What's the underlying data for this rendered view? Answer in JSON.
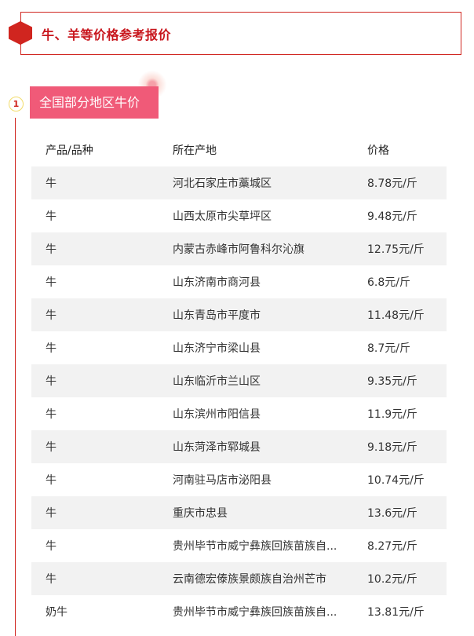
{
  "header": {
    "title": "牛、羊等价格参考报价"
  },
  "section": {
    "number": "1",
    "title": "全国部分地区牛价"
  },
  "table": {
    "columns": [
      "产品/品种",
      "所在产地",
      "价格"
    ],
    "rows": [
      [
        "牛",
        "河北石家庄市藁城区",
        "8.78元/斤"
      ],
      [
        "牛",
        "山西太原市尖草坪区",
        "9.48元/斤"
      ],
      [
        "牛",
        "内蒙古赤峰市阿鲁科尔沁旗",
        "12.75元/斤"
      ],
      [
        "牛",
        "山东济南市商河县",
        "6.8元/斤"
      ],
      [
        "牛",
        "山东青岛市平度市",
        "11.48元/斤"
      ],
      [
        "牛",
        "山东济宁市梁山县",
        "8.7元/斤"
      ],
      [
        "牛",
        "山东临沂市兰山区",
        "9.35元/斤"
      ],
      [
        "牛",
        "山东滨州市阳信县",
        "11.9元/斤"
      ],
      [
        "牛",
        "山东菏泽市郓城县",
        "9.18元/斤"
      ],
      [
        "牛",
        "河南驻马店市泌阳县",
        "10.74元/斤"
      ],
      [
        "牛",
        "重庆市忠县",
        "13.6元/斤"
      ],
      [
        "牛",
        "贵州毕节市威宁彝族回族苗族自...",
        "8.27元/斤"
      ],
      [
        "牛",
        "云南德宏傣族景颇族自治州芒市",
        "10.2元/斤"
      ],
      [
        "奶牛",
        "贵州毕节市威宁彝族回族苗族自...",
        "13.81元/斤"
      ]
    ]
  },
  "colors": {
    "accent": "#d0251f",
    "section_bg": "#f05a78",
    "row_shade": "#f2f2f2"
  }
}
